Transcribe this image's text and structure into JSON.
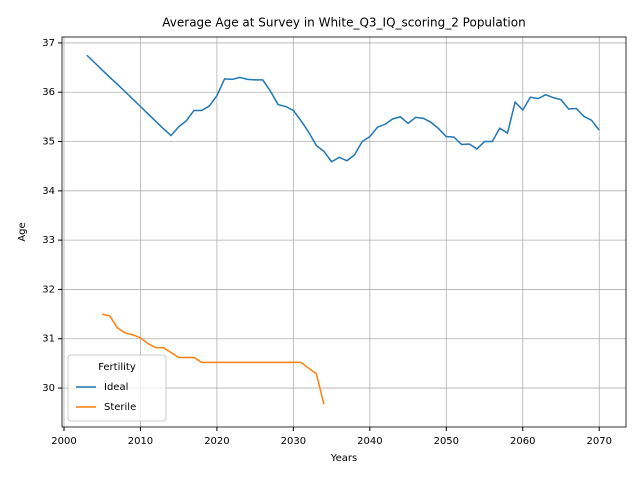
{
  "chart_data": {
    "type": "line",
    "title": "Average Age at Survey in White_Q3_IQ_scoring_2 Population",
    "x_label": "Years",
    "y_label": "Age",
    "legend_title": "Fertility",
    "legend_position": "lower left",
    "grid": true,
    "x": [
      2003,
      2004,
      2005,
      2006,
      2007,
      2008,
      2009,
      2010,
      2011,
      2012,
      2013,
      2014,
      2015,
      2016,
      2017,
      2018,
      2019,
      2020,
      2021,
      2022,
      2023,
      2024,
      2025,
      2026,
      2027,
      2028,
      2029,
      2030,
      2031,
      2032,
      2033,
      2034,
      2035,
      2036,
      2037,
      2038,
      2039,
      2040,
      2041,
      2042,
      2043,
      2044,
      2045,
      2046,
      2047,
      2048,
      2049,
      2050,
      2051,
      2052,
      2053,
      2054,
      2055,
      2056,
      2057,
      2058,
      2059,
      2060,
      2061,
      2062,
      2063,
      2064,
      2065,
      2066,
      2067,
      2068,
      2069,
      2070
    ],
    "series": [
      {
        "name": "Ideal",
        "color": "#1f77b4",
        "values": [
          36.75,
          36.6,
          36.45,
          36.3,
          36.16,
          36.01,
          35.86,
          35.71,
          35.56,
          35.41,
          35.26,
          35.12,
          35.3,
          35.42,
          35.63,
          35.63,
          35.72,
          35.93,
          36.27,
          36.26,
          36.3,
          36.26,
          36.25,
          36.25,
          36.02,
          35.75,
          35.71,
          35.63,
          35.42,
          35.19,
          34.92,
          34.8,
          34.59,
          34.68,
          34.61,
          34.73,
          35.0,
          35.1,
          35.29,
          35.35,
          35.46,
          35.5,
          35.37,
          35.49,
          35.47,
          35.39,
          35.26,
          35.1,
          35.09,
          34.94,
          34.95,
          34.85,
          35.0,
          35.0,
          35.27,
          35.17,
          35.8,
          35.64,
          35.9,
          35.87,
          35.95,
          35.89,
          35.85,
          35.66,
          35.67,
          35.51,
          35.43,
          35.23
        ]
      },
      {
        "name": "Sterile",
        "color": "#ff7f0e",
        "values": [
          null,
          null,
          31.5,
          31.46,
          31.22,
          31.12,
          31.08,
          31.02,
          30.9,
          30.82,
          30.82,
          30.72,
          30.62,
          30.62,
          30.62,
          30.52,
          30.52,
          30.52,
          30.52,
          30.52,
          30.52,
          30.52,
          30.52,
          30.52,
          30.52,
          30.52,
          30.52,
          30.52,
          30.52,
          30.4,
          30.29,
          29.67,
          null,
          null,
          null,
          null,
          null,
          null,
          null,
          null,
          null,
          null,
          null,
          null,
          null,
          null,
          null,
          null,
          null,
          null,
          null,
          null,
          null,
          null,
          null,
          null,
          null,
          null,
          null,
          null,
          null,
          null,
          null,
          null,
          null,
          null,
          null,
          null
        ]
      }
    ],
    "xlim": [
      1999.74,
      2073.5
    ],
    "ylim": [
      29.21,
      37.12
    ],
    "xticks": [
      2000,
      2010,
      2020,
      2030,
      2040,
      2050,
      2060,
      2070
    ],
    "yticks": [
      30,
      31,
      32,
      33,
      34,
      35,
      36,
      37
    ]
  }
}
